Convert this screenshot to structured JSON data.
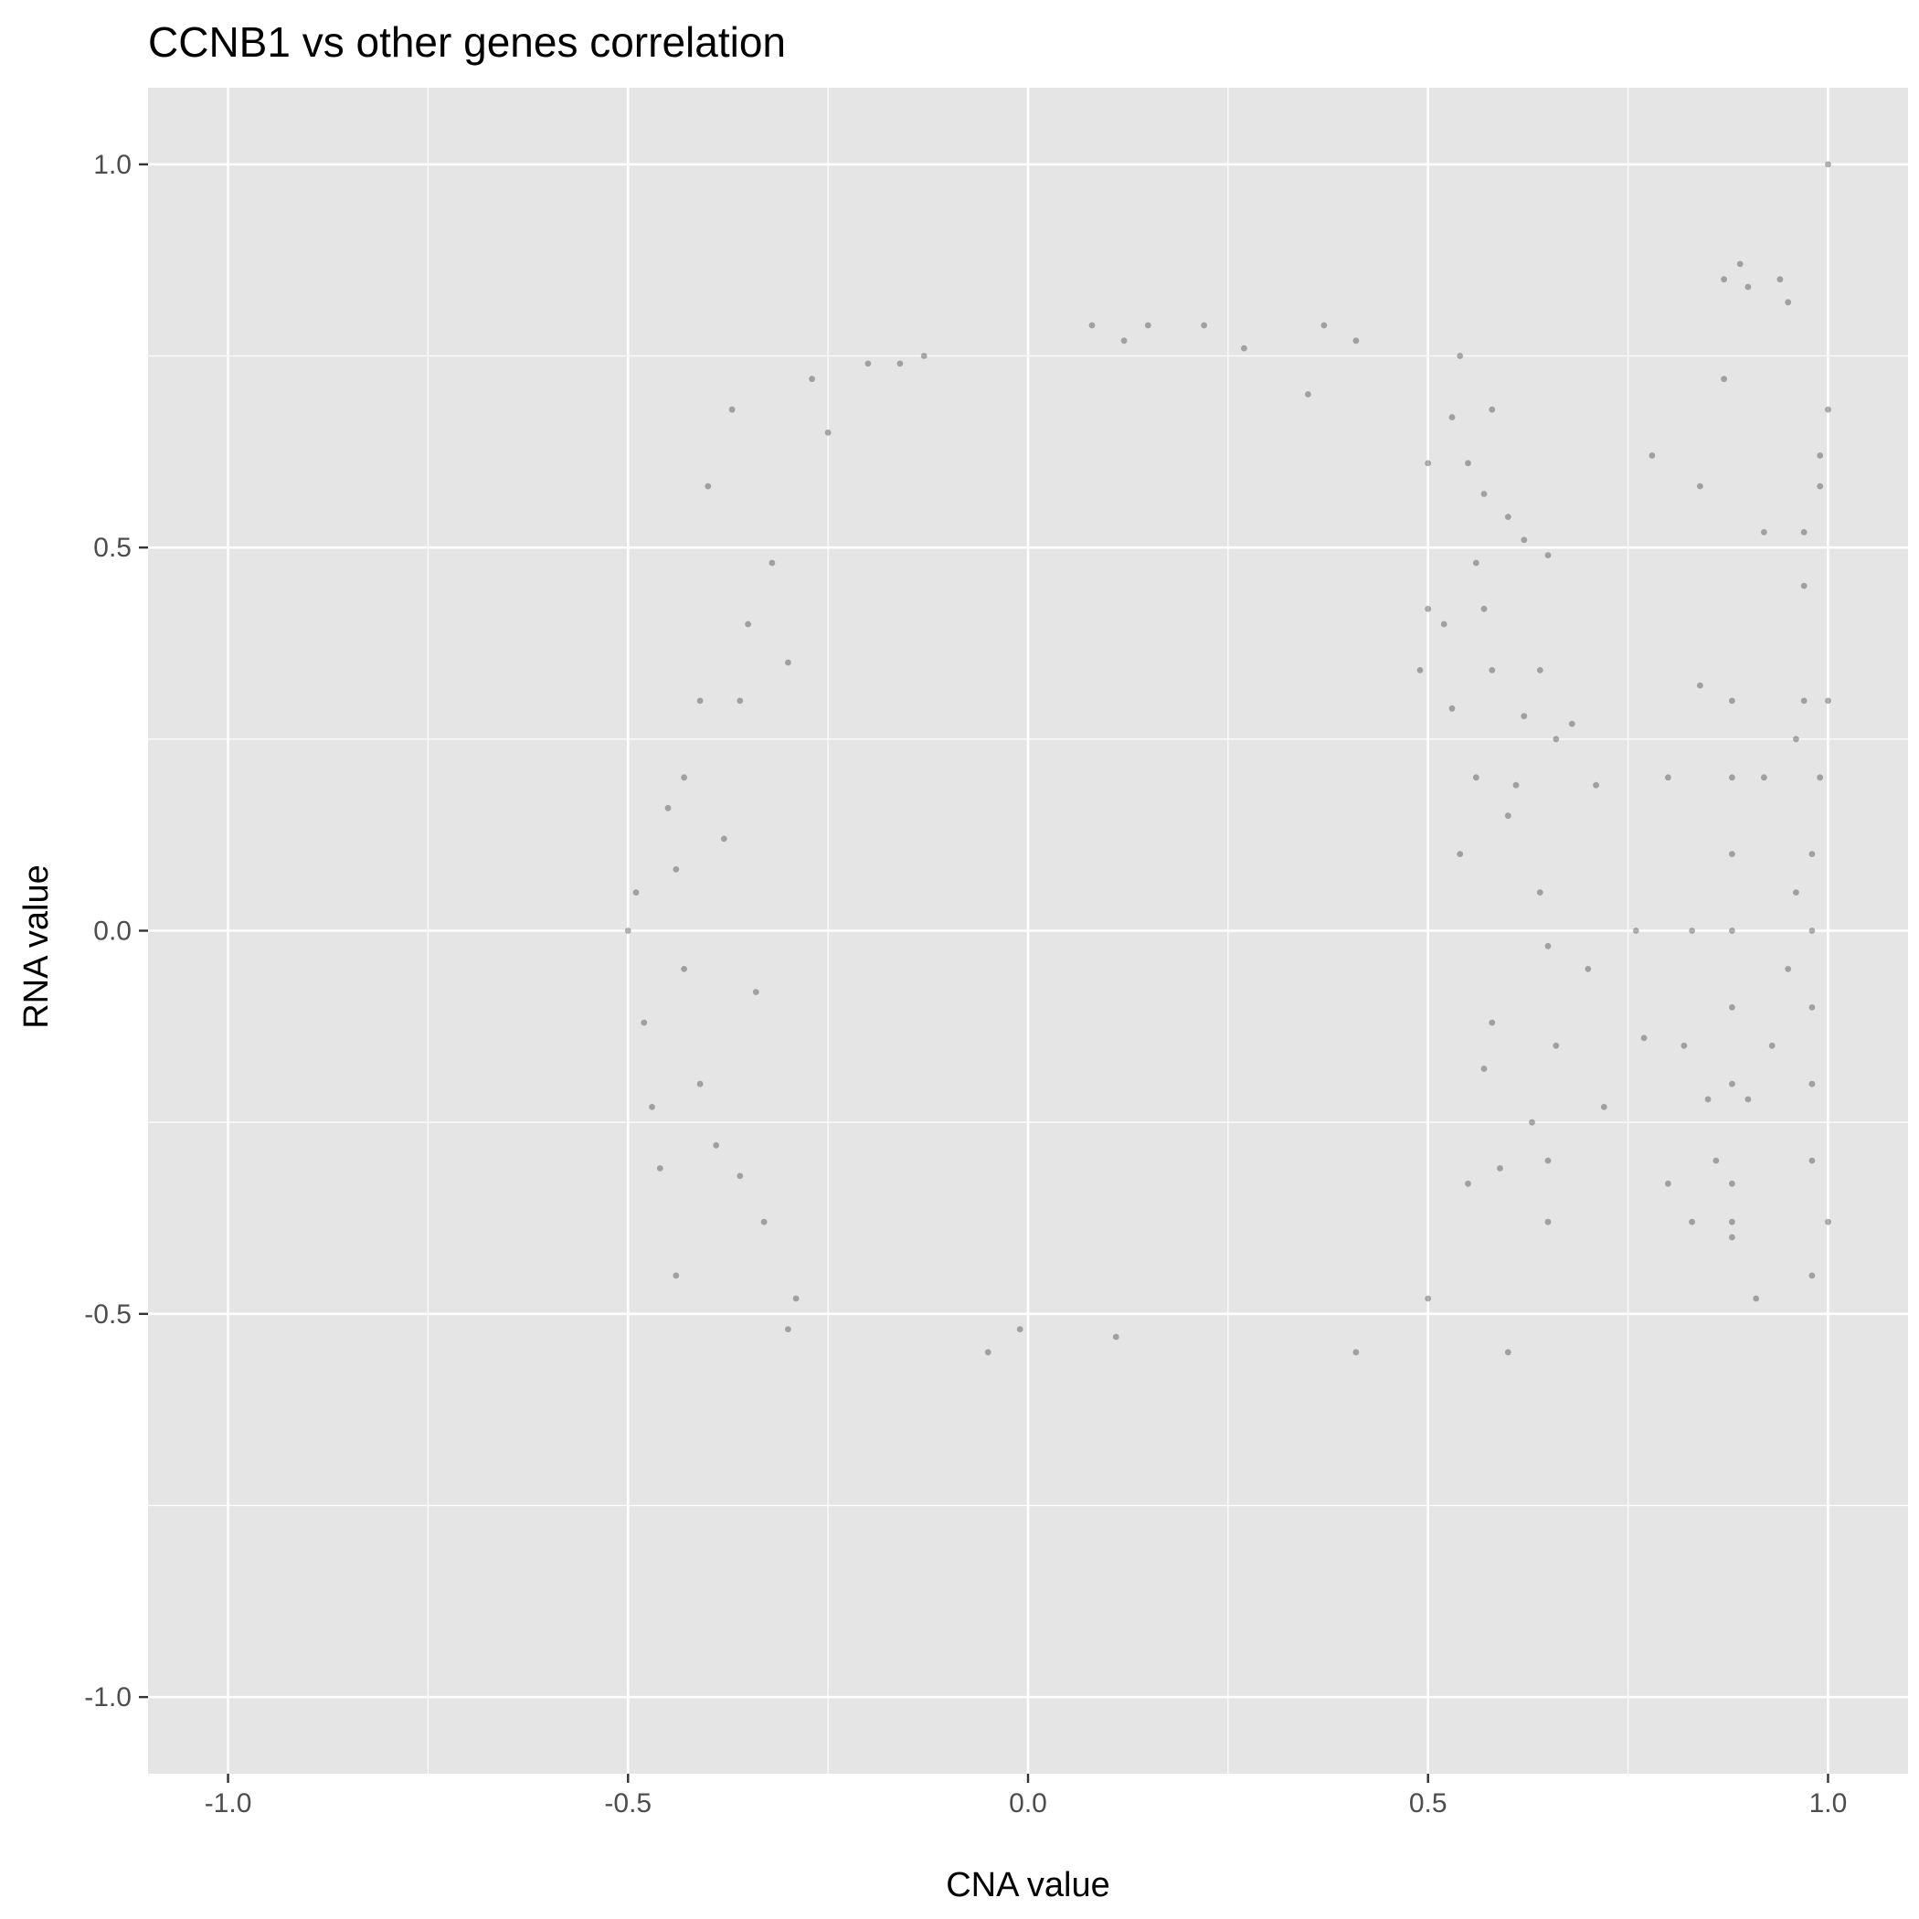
{
  "chart_data": {
    "type": "scatter",
    "title": "CCNB1 vs other genes correlation",
    "xlabel": "CNA value",
    "ylabel": "RNA value",
    "xlim": [
      -1.1,
      1.1
    ],
    "ylim": [
      -1.1,
      1.1
    ],
    "x_ticks": [
      -1.0,
      -0.5,
      0.0,
      0.5,
      1.0
    ],
    "x_tick_labels": [
      "-1.0",
      "-0.5",
      "0.0",
      "0.5",
      "1.0"
    ],
    "y_ticks": [
      -1.0,
      -0.5,
      0.0,
      0.5,
      1.0
    ],
    "y_tick_labels": [
      "-1.0",
      "-0.5",
      "0.0",
      "0.5",
      "1.0"
    ],
    "grid": true,
    "legend": "none",
    "colors": {
      "panel": "#e5e5e5",
      "grid": "#ffffff",
      "point": "#000000",
      "tick": "#4d4d4d"
    },
    "point_opacity": 0.3,
    "series": [
      {
        "points": [
          [
            1.0,
            1.0
          ],
          [
            0.87,
            0.85
          ],
          [
            0.89,
            0.87
          ],
          [
            0.9,
            0.84
          ],
          [
            0.94,
            0.85
          ],
          [
            0.95,
            0.82
          ],
          [
            0.87,
            0.72
          ],
          [
            0.78,
            0.62
          ],
          [
            0.84,
            0.58
          ],
          [
            0.92,
            0.52
          ],
          [
            0.99,
            0.62
          ],
          [
            1.0,
            0.68
          ],
          [
            0.99,
            0.58
          ],
          [
            0.97,
            0.52
          ],
          [
            0.97,
            0.45
          ],
          [
            0.5,
            0.61
          ],
          [
            0.53,
            0.67
          ],
          [
            0.58,
            0.68
          ],
          [
            0.54,
            0.75
          ],
          [
            0.55,
            0.61
          ],
          [
            0.57,
            0.57
          ],
          [
            0.62,
            0.51
          ],
          [
            0.65,
            0.49
          ],
          [
            0.56,
            0.48
          ],
          [
            0.57,
            0.42
          ],
          [
            0.5,
            0.42
          ],
          [
            0.6,
            0.54
          ],
          [
            0.52,
            0.4
          ],
          [
            0.49,
            0.34
          ],
          [
            0.53,
            0.29
          ],
          [
            0.58,
            0.34
          ],
          [
            0.62,
            0.28
          ],
          [
            0.64,
            0.34
          ],
          [
            0.66,
            0.25
          ],
          [
            0.68,
            0.27
          ],
          [
            0.71,
            0.19
          ],
          [
            0.61,
            0.19
          ],
          [
            0.56,
            0.2
          ],
          [
            0.54,
            0.1
          ],
          [
            0.6,
            0.15
          ],
          [
            0.64,
            0.05
          ],
          [
            0.65,
            -0.02
          ],
          [
            0.7,
            -0.05
          ],
          [
            0.66,
            -0.15
          ],
          [
            0.72,
            -0.23
          ],
          [
            0.65,
            -0.3
          ],
          [
            0.65,
            -0.38
          ],
          [
            0.6,
            -0.55
          ],
          [
            0.5,
            -0.48
          ],
          [
            0.55,
            -0.33
          ],
          [
            0.57,
            -0.18
          ],
          [
            0.58,
            -0.12
          ],
          [
            0.59,
            -0.31
          ],
          [
            0.63,
            -0.25
          ],
          [
            -0.5,
            0.0
          ],
          [
            -0.49,
            0.05
          ],
          [
            -0.48,
            -0.12
          ],
          [
            -0.47,
            -0.23
          ],
          [
            -0.46,
            -0.31
          ],
          [
            -0.44,
            -0.45
          ],
          [
            -0.45,
            0.16
          ],
          [
            -0.43,
            0.2
          ],
          [
            -0.41,
            0.3
          ],
          [
            -0.4,
            0.58
          ],
          [
            -0.37,
            0.68
          ],
          [
            -0.3,
            -0.52
          ],
          [
            -0.29,
            -0.48
          ],
          [
            -0.27,
            0.72
          ],
          [
            -0.25,
            0.65
          ],
          [
            -0.2,
            0.74
          ],
          [
            -0.16,
            0.74
          ],
          [
            -0.13,
            0.75
          ],
          [
            -0.05,
            -0.55
          ],
          [
            -0.01,
            -0.52
          ],
          [
            0.11,
            -0.53
          ],
          [
            0.12,
            0.77
          ],
          [
            0.15,
            0.79
          ],
          [
            0.22,
            0.79
          ],
          [
            0.27,
            0.76
          ],
          [
            0.37,
            0.79
          ],
          [
            0.41,
            -0.55
          ],
          [
            0.41,
            0.77
          ],
          [
            0.35,
            0.7
          ],
          [
            0.08,
            0.79
          ],
          [
            -0.36,
            -0.32
          ],
          [
            -0.33,
            -0.38
          ],
          [
            -0.34,
            -0.08
          ],
          [
            -0.38,
            0.12
          ],
          [
            -0.36,
            0.3
          ],
          [
            -0.35,
            0.4
          ],
          [
            -0.41,
            -0.2
          ],
          [
            -0.43,
            -0.05
          ],
          [
            -0.44,
            0.08
          ],
          [
            -0.39,
            -0.28
          ],
          [
            -0.32,
            0.48
          ],
          [
            -0.3,
            0.35
          ],
          [
            0.83,
            0.0
          ],
          [
            0.82,
            -0.15
          ],
          [
            0.85,
            -0.22
          ],
          [
            0.86,
            -0.3
          ],
          [
            0.83,
            -0.38
          ],
          [
            0.88,
            -0.4
          ],
          [
            0.91,
            -0.48
          ],
          [
            0.98,
            -0.45
          ],
          [
            1.0,
            -0.38
          ],
          [
            0.88,
            0.3
          ],
          [
            0.84,
            0.32
          ],
          [
            0.8,
            0.2
          ],
          [
            0.92,
            0.2
          ],
          [
            0.96,
            0.25
          ],
          [
            0.97,
            0.3
          ],
          [
            1.0,
            0.3
          ],
          [
            0.76,
            0.0
          ],
          [
            0.77,
            -0.14
          ],
          [
            0.8,
            -0.33
          ],
          [
            0.88,
            0.2
          ],
          [
            0.88,
            0.1
          ],
          [
            0.88,
            0.0
          ],
          [
            0.88,
            -0.1
          ],
          [
            0.88,
            -0.2
          ],
          [
            0.88,
            -0.33
          ],
          [
            0.88,
            -0.38
          ],
          [
            0.98,
            0.1
          ],
          [
            0.98,
            0.0
          ],
          [
            0.98,
            -0.1
          ],
          [
            0.98,
            -0.2
          ],
          [
            0.98,
            -0.3
          ],
          [
            0.99,
            0.2
          ],
          [
            0.95,
            -0.05
          ],
          [
            0.96,
            0.05
          ],
          [
            0.93,
            -0.15
          ],
          [
            0.9,
            -0.22
          ]
        ]
      }
    ]
  }
}
